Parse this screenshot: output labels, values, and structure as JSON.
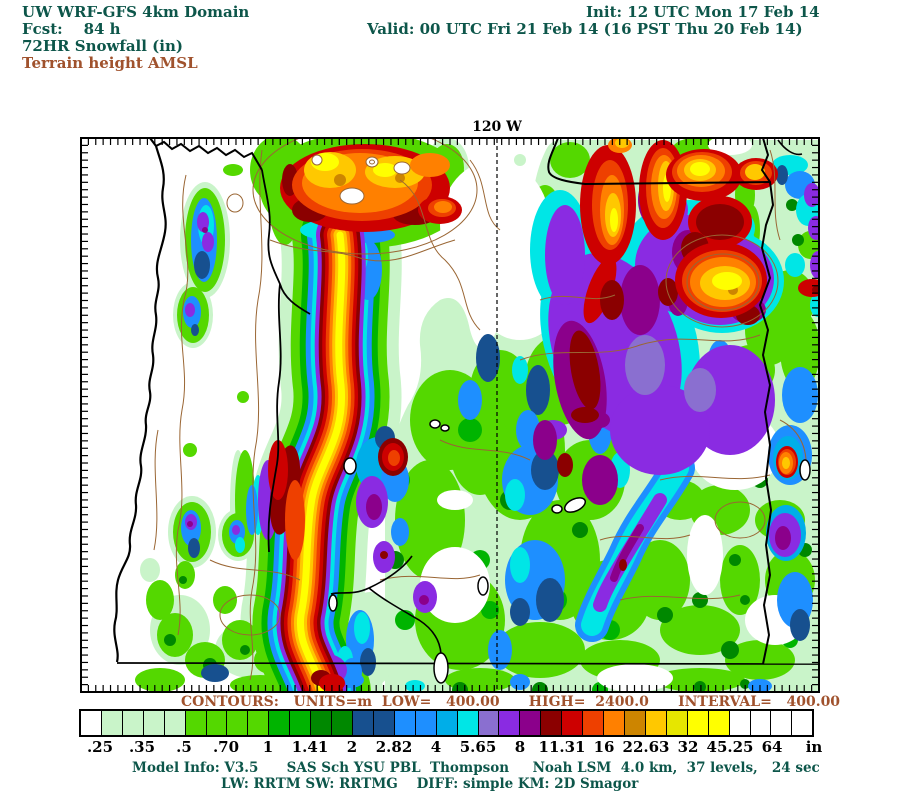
{
  "header": {
    "title": "UW WRF-GFS 4km Domain",
    "fcst_line": "Fcst:    84 h",
    "product_line": "72HR Snowfall (in)",
    "overlay_line": "Terrain height AMSL",
    "init_line": "Init: 12 UTC Mon 17 Feb 14",
    "valid_line": "Valid: 00 UTC Fri 21 Feb 14 (16 PST Thu 20 Feb 14)"
  },
  "map": {
    "meridian_label": "120 W",
    "contours_info": "CONTOURS:   UNITS=m  LOW=   400.00      HIGH=  2400.0      INTERVAL=   400.00"
  },
  "colorbar": {
    "unit_label": "in",
    "tick_labels": [
      ".25",
      ".35",
      ".5",
      ".70",
      "1",
      "1.41",
      "2",
      "2.82",
      "4",
      "5.65",
      "8",
      "11.31",
      "16",
      "22.63",
      "32",
      "45.25",
      "64"
    ],
    "cell_colors": [
      "#ffffff",
      "#c9f4c9",
      "#c9f4c9",
      "#c9f4c9",
      "#c9f4c9",
      "#54d800",
      "#54d800",
      "#54d800",
      "#54d800",
      "#00b400",
      "#00b400",
      "#008800",
      "#008800",
      "#17508f",
      "#17508f",
      "#1e8fff",
      "#1e8fff",
      "#00aee8",
      "#00e6e6",
      "#8a6fd0",
      "#8a2be2",
      "#8b008b",
      "#8b0000",
      "#cd0000",
      "#ee4000",
      "#ff8000",
      "#cd8500",
      "#ffc800",
      "#e6e600",
      "#ffff00",
      "#ffff00",
      "#ffffff",
      "#ffffff",
      "#ffffff",
      "#ffffff"
    ]
  },
  "footer": {
    "line1": "Model Info: V3.5      SAS Sch YSU PBL  Thompson     Noah LSM  4.0 km,  37 levels,   24 sec",
    "line2": "LW: RRTM SW: RRTMG    DIFF: simple KM: 2D Smagor"
  },
  "palette": {
    "textteal": "#0d564a",
    "textbrown": "#a0522d",
    "terrain": "#9a6634",
    "pale": "#c9f4c9",
    "chart": "#54d800",
    "green": "#00b400",
    "dkgreen": "#008800",
    "navy": "#17508f",
    "dodger": "#1e8fff",
    "sky": "#00aee8",
    "cyan": "#00e6e6",
    "peri": "#8a6fd0",
    "violet": "#8a2be2",
    "magenta": "#8b008b",
    "maroon": "#8b0000",
    "red": "#cd0000",
    "orangered": "#ee4000",
    "orange": "#ff8000",
    "dkgold": "#cd8500",
    "gold": "#ffc800",
    "yellow": "#ffff00"
  }
}
